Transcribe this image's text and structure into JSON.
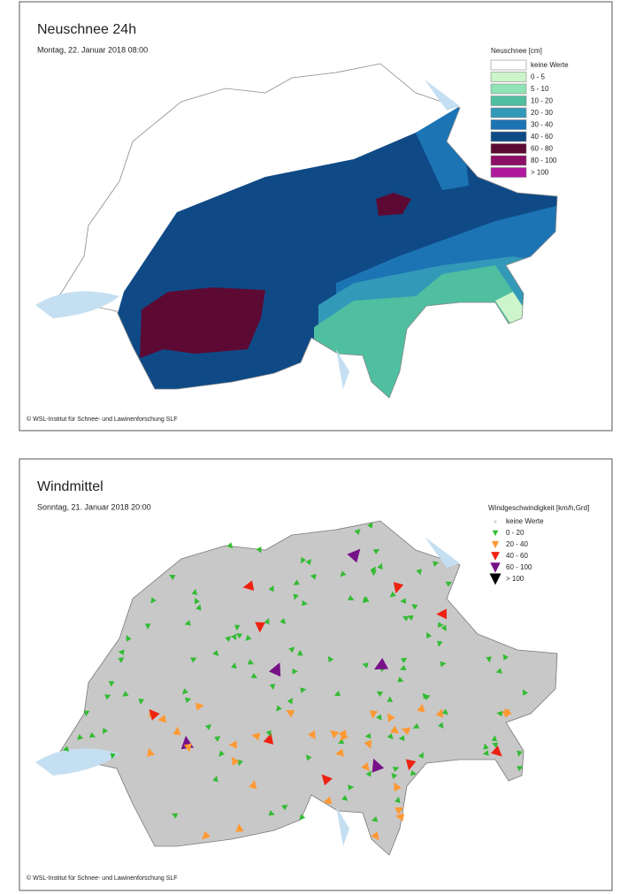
{
  "panels": [
    {
      "title": "Neuschnee 24h",
      "date": "Montag, 22. Januar 2018 08:00",
      "legend": {
        "title": "Neuschnee [cm]",
        "items": [
          {
            "label": "keine Werte",
            "color": "#ffffff"
          },
          {
            "label": "0 - 5",
            "color": "#ccf5cc"
          },
          {
            "label": "5 - 10",
            "color": "#8fe3b5"
          },
          {
            "label": "10 - 20",
            "color": "#4fbfa0"
          },
          {
            "label": "20 - 30",
            "color": "#3399b8"
          },
          {
            "label": "30 - 40",
            "color": "#1c74b4"
          },
          {
            "label": "40 - 60",
            "color": "#0f4a87"
          },
          {
            "label": "60 - 80",
            "color": "#5c0a33"
          },
          {
            "label": "80 - 100",
            "color": "#8c0e66"
          },
          {
            "label": "> 100",
            "color": "#b0189e"
          }
        ]
      },
      "credit": "© WSL-Institut für Schnee- und Lawinenforschung SLF"
    },
    {
      "title": "Windmittel",
      "date": "Sonntag, 21. Januar 2018 20:00",
      "legend": {
        "title": "Windgeschwindigkeit [km/h,Grd]",
        "items": [
          {
            "label": "keine Werte",
            "color": "#cccccc"
          },
          {
            "label": "0 - 20",
            "color": "#33bb33"
          },
          {
            "label": "20 - 40",
            "color": "#ff9933"
          },
          {
            "label": "40 - 60",
            "color": "#ee2211"
          },
          {
            "label": "60 - 100",
            "color": "#771188"
          },
          {
            "label": "> 100",
            "color": "#000000"
          }
        ]
      },
      "credit": "© WSL-Institut für Schnee- und Lawinenforschung SLF"
    }
  ]
}
